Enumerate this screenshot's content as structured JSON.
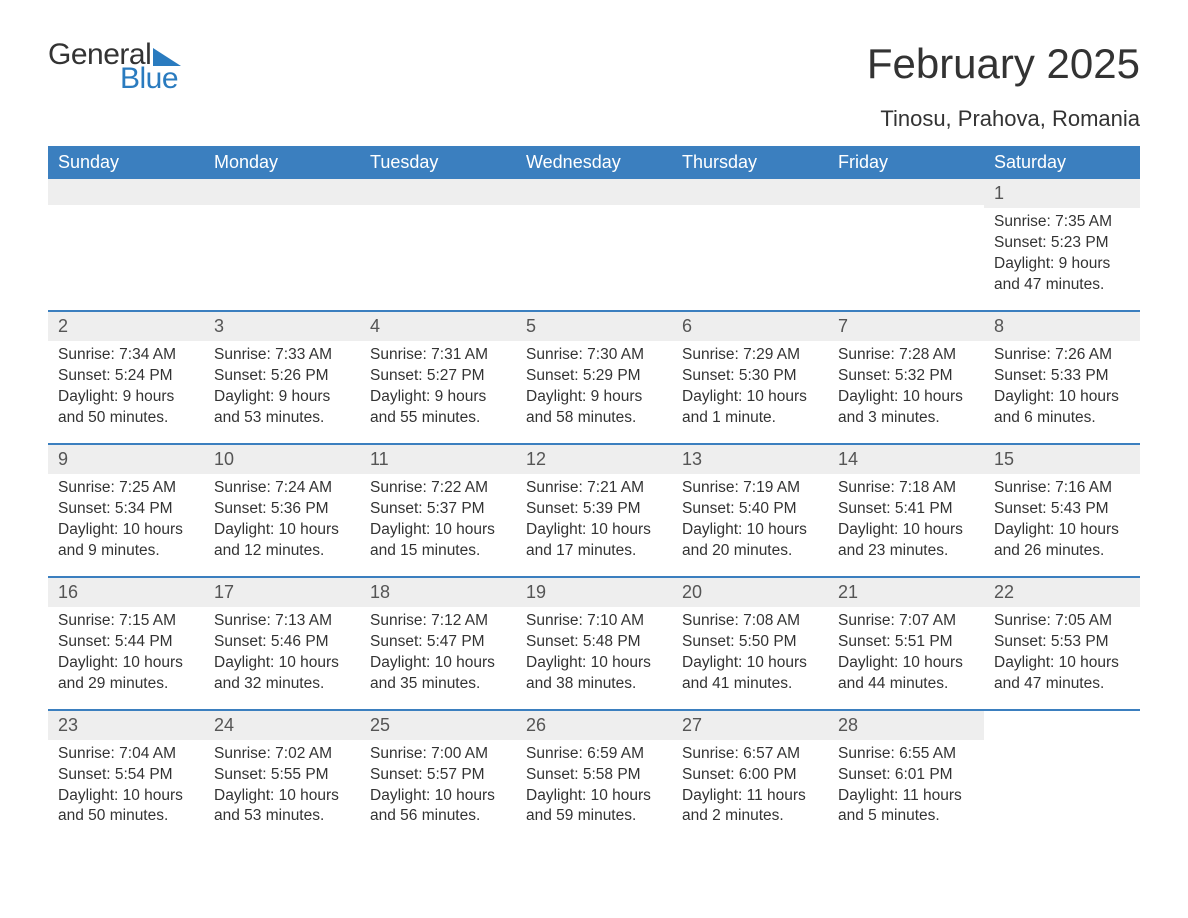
{
  "brand": {
    "general": "General",
    "blue": "Blue",
    "color": "#2a7bbf"
  },
  "title": "February 2025",
  "location": "Tinosu, Prahova, Romania",
  "colors": {
    "header_bg": "#3b7fbf",
    "header_text": "#ffffff",
    "row_divider": "#3b7fbf",
    "daynum_bg": "#eeeeee",
    "text": "#333333",
    "page_bg": "#ffffff"
  },
  "weekday_labels": [
    "Sunday",
    "Monday",
    "Tuesday",
    "Wednesday",
    "Thursday",
    "Friday",
    "Saturday"
  ],
  "weeks": [
    [
      {
        "empty": true
      },
      {
        "empty": true
      },
      {
        "empty": true
      },
      {
        "empty": true
      },
      {
        "empty": true
      },
      {
        "empty": true
      },
      {
        "day": "1",
        "sunrise": "Sunrise: 7:35 AM",
        "sunset": "Sunset: 5:23 PM",
        "daylight1": "Daylight: 9 hours",
        "daylight2": "and 47 minutes."
      }
    ],
    [
      {
        "day": "2",
        "sunrise": "Sunrise: 7:34 AM",
        "sunset": "Sunset: 5:24 PM",
        "daylight1": "Daylight: 9 hours",
        "daylight2": "and 50 minutes."
      },
      {
        "day": "3",
        "sunrise": "Sunrise: 7:33 AM",
        "sunset": "Sunset: 5:26 PM",
        "daylight1": "Daylight: 9 hours",
        "daylight2": "and 53 minutes."
      },
      {
        "day": "4",
        "sunrise": "Sunrise: 7:31 AM",
        "sunset": "Sunset: 5:27 PM",
        "daylight1": "Daylight: 9 hours",
        "daylight2": "and 55 minutes."
      },
      {
        "day": "5",
        "sunrise": "Sunrise: 7:30 AM",
        "sunset": "Sunset: 5:29 PM",
        "daylight1": "Daylight: 9 hours",
        "daylight2": "and 58 minutes."
      },
      {
        "day": "6",
        "sunrise": "Sunrise: 7:29 AM",
        "sunset": "Sunset: 5:30 PM",
        "daylight1": "Daylight: 10 hours",
        "daylight2": "and 1 minute."
      },
      {
        "day": "7",
        "sunrise": "Sunrise: 7:28 AM",
        "sunset": "Sunset: 5:32 PM",
        "daylight1": "Daylight: 10 hours",
        "daylight2": "and 3 minutes."
      },
      {
        "day": "8",
        "sunrise": "Sunrise: 7:26 AM",
        "sunset": "Sunset: 5:33 PM",
        "daylight1": "Daylight: 10 hours",
        "daylight2": "and 6 minutes."
      }
    ],
    [
      {
        "day": "9",
        "sunrise": "Sunrise: 7:25 AM",
        "sunset": "Sunset: 5:34 PM",
        "daylight1": "Daylight: 10 hours",
        "daylight2": "and 9 minutes."
      },
      {
        "day": "10",
        "sunrise": "Sunrise: 7:24 AM",
        "sunset": "Sunset: 5:36 PM",
        "daylight1": "Daylight: 10 hours",
        "daylight2": "and 12 minutes."
      },
      {
        "day": "11",
        "sunrise": "Sunrise: 7:22 AM",
        "sunset": "Sunset: 5:37 PM",
        "daylight1": "Daylight: 10 hours",
        "daylight2": "and 15 minutes."
      },
      {
        "day": "12",
        "sunrise": "Sunrise: 7:21 AM",
        "sunset": "Sunset: 5:39 PM",
        "daylight1": "Daylight: 10 hours",
        "daylight2": "and 17 minutes."
      },
      {
        "day": "13",
        "sunrise": "Sunrise: 7:19 AM",
        "sunset": "Sunset: 5:40 PM",
        "daylight1": "Daylight: 10 hours",
        "daylight2": "and 20 minutes."
      },
      {
        "day": "14",
        "sunrise": "Sunrise: 7:18 AM",
        "sunset": "Sunset: 5:41 PM",
        "daylight1": "Daylight: 10 hours",
        "daylight2": "and 23 minutes."
      },
      {
        "day": "15",
        "sunrise": "Sunrise: 7:16 AM",
        "sunset": "Sunset: 5:43 PM",
        "daylight1": "Daylight: 10 hours",
        "daylight2": "and 26 minutes."
      }
    ],
    [
      {
        "day": "16",
        "sunrise": "Sunrise: 7:15 AM",
        "sunset": "Sunset: 5:44 PM",
        "daylight1": "Daylight: 10 hours",
        "daylight2": "and 29 minutes."
      },
      {
        "day": "17",
        "sunrise": "Sunrise: 7:13 AM",
        "sunset": "Sunset: 5:46 PM",
        "daylight1": "Daylight: 10 hours",
        "daylight2": "and 32 minutes."
      },
      {
        "day": "18",
        "sunrise": "Sunrise: 7:12 AM",
        "sunset": "Sunset: 5:47 PM",
        "daylight1": "Daylight: 10 hours",
        "daylight2": "and 35 minutes."
      },
      {
        "day": "19",
        "sunrise": "Sunrise: 7:10 AM",
        "sunset": "Sunset: 5:48 PM",
        "daylight1": "Daylight: 10 hours",
        "daylight2": "and 38 minutes."
      },
      {
        "day": "20",
        "sunrise": "Sunrise: 7:08 AM",
        "sunset": "Sunset: 5:50 PM",
        "daylight1": "Daylight: 10 hours",
        "daylight2": "and 41 minutes."
      },
      {
        "day": "21",
        "sunrise": "Sunrise: 7:07 AM",
        "sunset": "Sunset: 5:51 PM",
        "daylight1": "Daylight: 10 hours",
        "daylight2": "and 44 minutes."
      },
      {
        "day": "22",
        "sunrise": "Sunrise: 7:05 AM",
        "sunset": "Sunset: 5:53 PM",
        "daylight1": "Daylight: 10 hours",
        "daylight2": "and 47 minutes."
      }
    ],
    [
      {
        "day": "23",
        "sunrise": "Sunrise: 7:04 AM",
        "sunset": "Sunset: 5:54 PM",
        "daylight1": "Daylight: 10 hours",
        "daylight2": "and 50 minutes."
      },
      {
        "day": "24",
        "sunrise": "Sunrise: 7:02 AM",
        "sunset": "Sunset: 5:55 PM",
        "daylight1": "Daylight: 10 hours",
        "daylight2": "and 53 minutes."
      },
      {
        "day": "25",
        "sunrise": "Sunrise: 7:00 AM",
        "sunset": "Sunset: 5:57 PM",
        "daylight1": "Daylight: 10 hours",
        "daylight2": "and 56 minutes."
      },
      {
        "day": "26",
        "sunrise": "Sunrise: 6:59 AM",
        "sunset": "Sunset: 5:58 PM",
        "daylight1": "Daylight: 10 hours",
        "daylight2": "and 59 minutes."
      },
      {
        "day": "27",
        "sunrise": "Sunrise: 6:57 AM",
        "sunset": "Sunset: 6:00 PM",
        "daylight1": "Daylight: 11 hours",
        "daylight2": "and 2 minutes."
      },
      {
        "day": "28",
        "sunrise": "Sunrise: 6:55 AM",
        "sunset": "Sunset: 6:01 PM",
        "daylight1": "Daylight: 11 hours",
        "daylight2": "and 5 minutes."
      },
      {
        "empty": true,
        "trailing": true
      }
    ]
  ]
}
